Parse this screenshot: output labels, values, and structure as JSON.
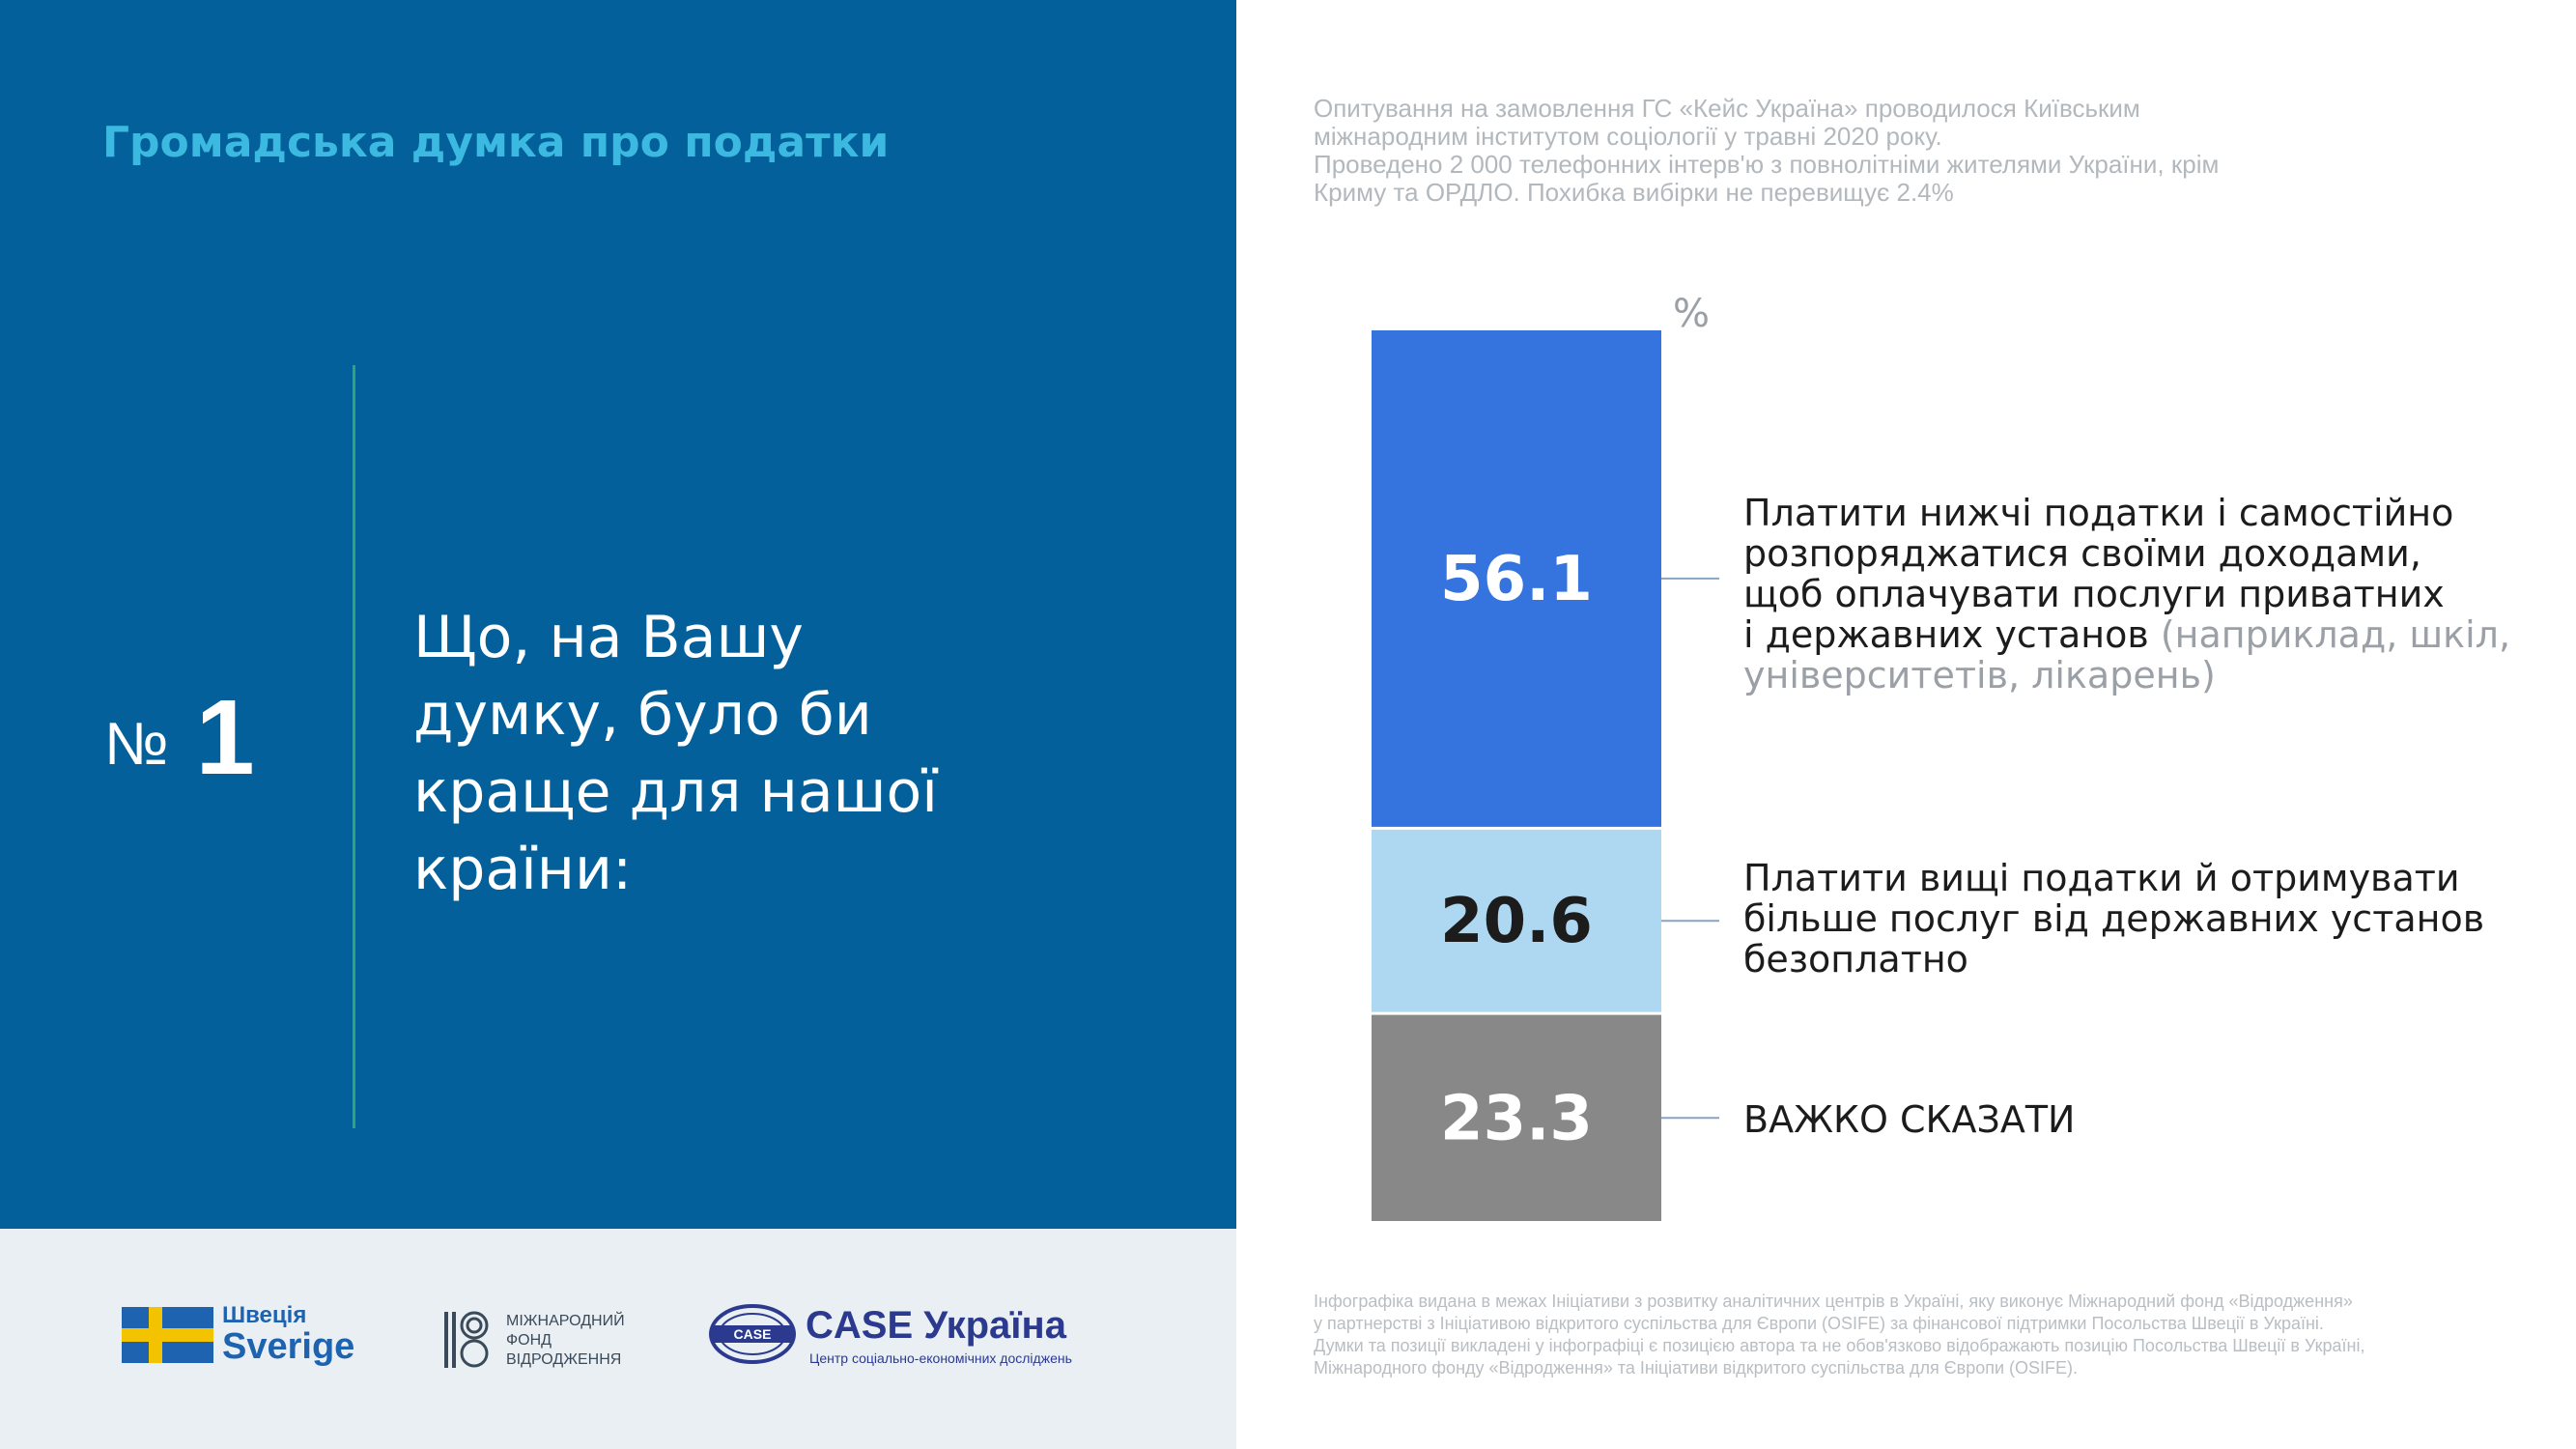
{
  "header": {
    "title": "Громадська думка про податки"
  },
  "question": {
    "number_symbol": "№",
    "number": "1",
    "lines": [
      "Що, на Вашу",
      "думку, було би",
      "краще для нашої",
      "країни:"
    ]
  },
  "survey_note": [
    "Опитування на замовлення ГС «Кейс Україна» проводилося Київським",
    "міжнародним інститутом соціології у травні 2020 року.",
    "Проведено 2 000 телефонних інтерв'ю з повнолітніми жителями України, крім",
    "Криму та ОРДЛО. Похибка вибірки не перевищує 2.4%"
  ],
  "chart_data": {
    "type": "bar",
    "stacked": true,
    "unit": "%",
    "categories": [
      "Платити нижчі податки і самостійно розпоряджатися своїми доходами, щоб оплачувати послуги приватних і державних установ (наприклад, шкіл, університетів, лікарень)",
      "Платити вищі податки й отримувати більше послуг від державних установ безоплатно",
      "ВАЖКО СКАЗАТИ"
    ],
    "values": [
      56.1,
      20.6,
      23.3
    ],
    "value_labels": [
      "56.1",
      "20.6",
      "23.3"
    ],
    "colors": [
      "#3574de",
      "#aed7f1",
      "#888888"
    ],
    "label_colors": [
      "#ffffff",
      "#1c1c1c",
      "#ffffff"
    ],
    "ylim": [
      0,
      100
    ]
  },
  "option_labels": {
    "a": {
      "lines": [
        "Платити нижчі податки і самостійно",
        "розпоряджатися своїми доходами,",
        "щоб оплачувати послуги приватних"
      ],
      "line4": "і державних установ",
      "line4_muted": " (наприклад, шкіл,",
      "line5_muted": "університетів, лікарень)"
    },
    "b": {
      "lines": [
        "Платити вищі податки й отримувати",
        "більше послуг від державних установ",
        "безоплатно"
      ]
    },
    "c": {
      "text": "ВАЖКО СКАЗАТИ"
    }
  },
  "footer_note": [
    "Інфографіка видана в межах Ініціативи з розвитку аналітичних центрів в Україні, яку виконує Міжнародний фонд «Відродження»",
    "у партнерстві з Ініціативою відкритого суспільства для Європи (OSIFE) за фінансової підтримки Посольства Швеції в Україні.",
    "Думки та позиції викладені у інфографіці є позицією автора та не обов'язково відображають позицію Посольства Швеції в Україні,",
    "Міжнародного фонду «Відродження» та Ініціативи відкритого суспільства для Європи (OSIFE)."
  ],
  "logos": {
    "sweden": {
      "line1": "Швеція",
      "line2": "Sverige",
      "flag_blue": "#1e63b0",
      "flag_yellow": "#f4c300"
    },
    "irf": {
      "text": "МІЖНАРОДНИЙ\nФОНД\nВІДРОДЖЕННЯ",
      "icon": "irf-mark-icon"
    },
    "case": {
      "title": "CASE Україна",
      "subtitle": "Центр соціально-економічних досліджень",
      "mark_text": "CASE",
      "color": "#2b3a8f"
    }
  },
  "colors": {
    "panel": "#03609a",
    "title_accent": "#3cb9e0",
    "divider": "#2fa37a",
    "footer_band": "#e9eff3"
  }
}
